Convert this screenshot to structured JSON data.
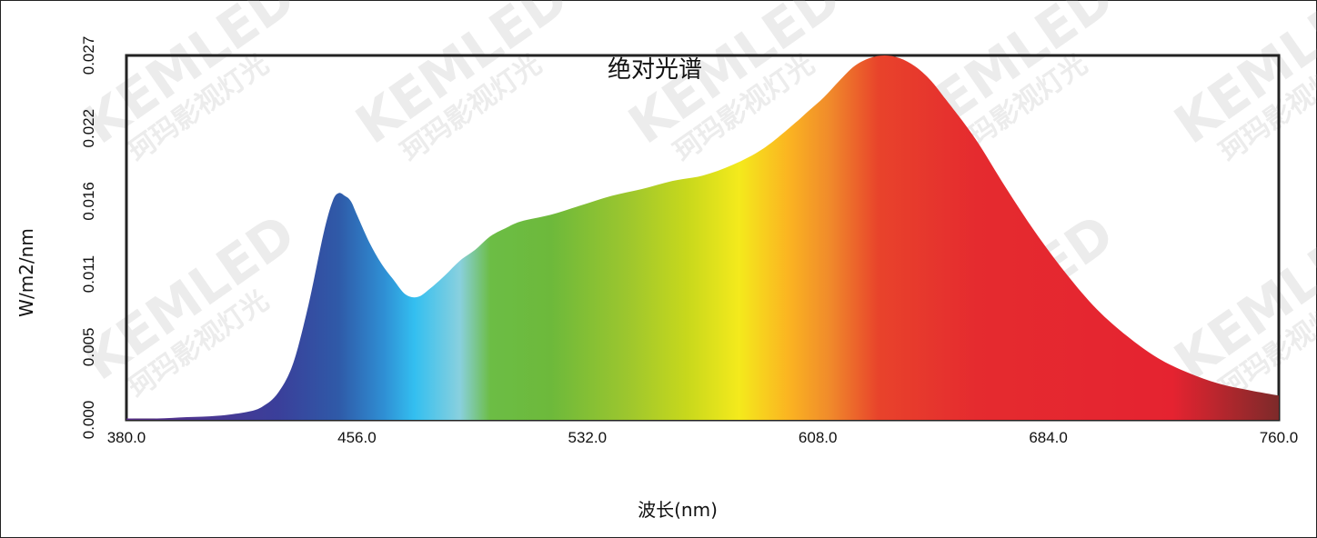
{
  "chart_data": {
    "type": "area",
    "title": "绝对光谱",
    "xlabel": "波长(nm)",
    "ylabel": "W/m2/nm",
    "xlim": [
      380,
      760
    ],
    "ylim": [
      0,
      0.027
    ],
    "x_ticks": [
      "380.0",
      "456.0",
      "532.0",
      "608.0",
      "684.0",
      "760.0"
    ],
    "y_ticks": [
      "0.000",
      "0.005",
      "0.011",
      "0.016",
      "0.022",
      "0.027"
    ],
    "series": [
      {
        "x": [
          380,
          390,
          400,
          410,
          420,
          425,
          430,
          435,
          440,
          445,
          448,
          450,
          452,
          454,
          456,
          460,
          464,
          468,
          472,
          476,
          480,
          485,
          490,
          495,
          500,
          505,
          510,
          520,
          530,
          540,
          550,
          560,
          570,
          580,
          590,
          600,
          605,
          610,
          615,
          620,
          625,
          630,
          635,
          640,
          645,
          650,
          660,
          670,
          680,
          690,
          700,
          710,
          720,
          730,
          740,
          750,
          760
        ],
        "y": [
          0.0001,
          0.0001,
          0.0002,
          0.0003,
          0.0006,
          0.001,
          0.002,
          0.0042,
          0.0085,
          0.0138,
          0.0162,
          0.0168,
          0.0166,
          0.0162,
          0.0152,
          0.0132,
          0.0116,
          0.0104,
          0.0093,
          0.0091,
          0.0097,
          0.0107,
          0.0118,
          0.0126,
          0.0136,
          0.0142,
          0.0147,
          0.0152,
          0.0159,
          0.0166,
          0.0171,
          0.0177,
          0.0181,
          0.0189,
          0.0201,
          0.0219,
          0.0229,
          0.0239,
          0.0251,
          0.0262,
          0.0268,
          0.027,
          0.0268,
          0.0262,
          0.0252,
          0.0238,
          0.0208,
          0.0172,
          0.0138,
          0.0108,
          0.0082,
          0.0062,
          0.0046,
          0.0035,
          0.0027,
          0.0022,
          0.0018
        ]
      }
    ],
    "spectrum_colors": [
      {
        "nm": 380,
        "color": "#5b2f8a"
      },
      {
        "nm": 430,
        "color": "#3a3f9a"
      },
      {
        "nm": 450,
        "color": "#2f5aa8"
      },
      {
        "nm": 465,
        "color": "#2f8fd4"
      },
      {
        "nm": 475,
        "color": "#33bff0"
      },
      {
        "nm": 490,
        "color": "#89d0de"
      },
      {
        "nm": 500,
        "color": "#6cbd45"
      },
      {
        "nm": 520,
        "color": "#6db93b"
      },
      {
        "nm": 545,
        "color": "#9cc62e"
      },
      {
        "nm": 565,
        "color": "#c8d81c"
      },
      {
        "nm": 582,
        "color": "#f4ea1c"
      },
      {
        "nm": 598,
        "color": "#fbb521"
      },
      {
        "nm": 612,
        "color": "#f08a2b"
      },
      {
        "nm": 628,
        "color": "#e8432b"
      },
      {
        "nm": 660,
        "color": "#e52b2f"
      },
      {
        "nm": 725,
        "color": "#e52330"
      },
      {
        "nm": 760,
        "color": "#7d2a2a"
      }
    ],
    "grid": false,
    "legend": "none",
    "watermark": [
      "KEMLED",
      "珂玛影视灯光"
    ]
  }
}
